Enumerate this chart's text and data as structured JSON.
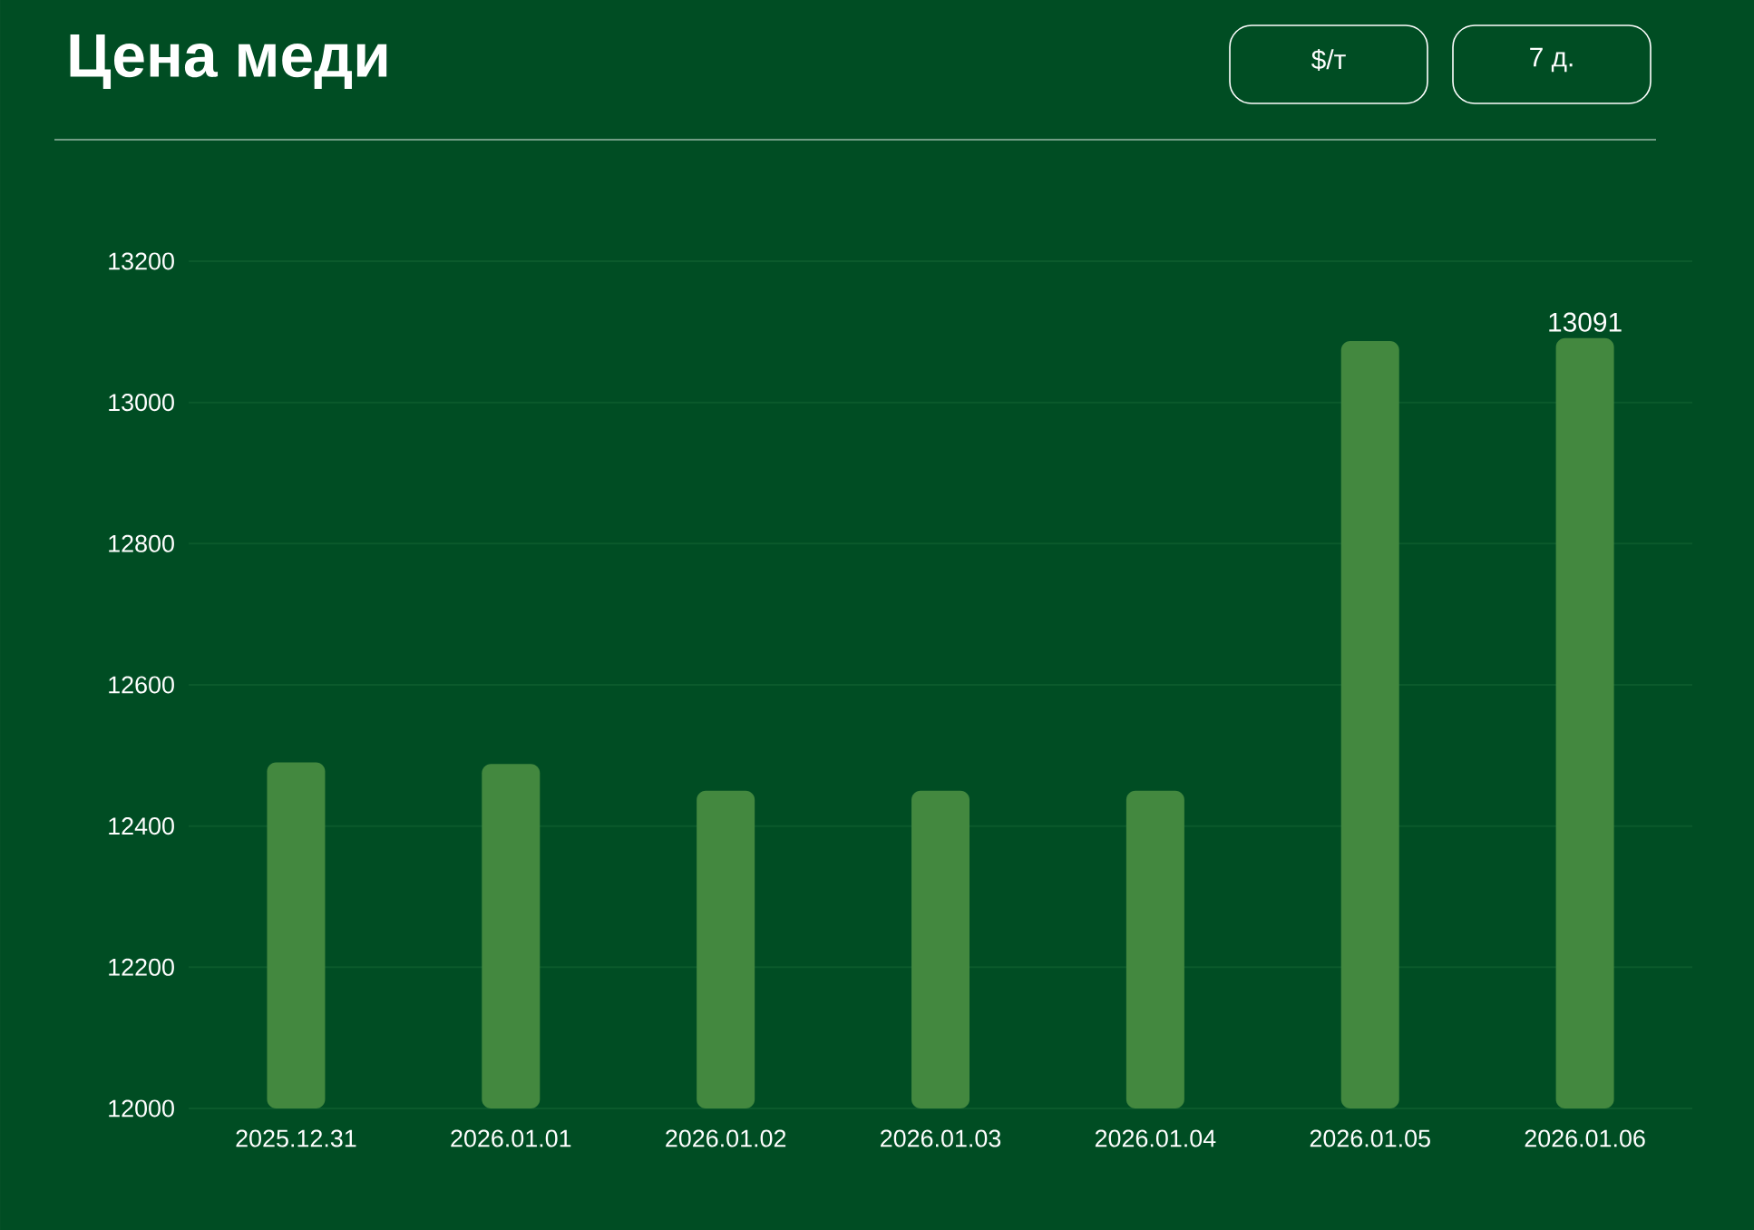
{
  "chart_data": {
    "type": "bar",
    "title": "Цена меди",
    "annotations": [
      "$/т",
      "7 д."
    ],
    "categories": [
      "2025.12.31",
      "2026.01.01",
      "2026.01.02",
      "2026.01.03",
      "2026.01.04",
      "2026.01.05",
      "2026.01.06"
    ],
    "values": [
      12490,
      12488,
      12450,
      12450,
      12450,
      13087,
      13091
    ],
    "value_labels": [
      null,
      null,
      null,
      null,
      null,
      null,
      "13091"
    ],
    "color": "#43883f",
    "ylim": [
      12000,
      13200
    ],
    "yticks": [
      12000,
      12200,
      12400,
      12600,
      12800,
      13000,
      13200
    ],
    "grid": "y"
  }
}
